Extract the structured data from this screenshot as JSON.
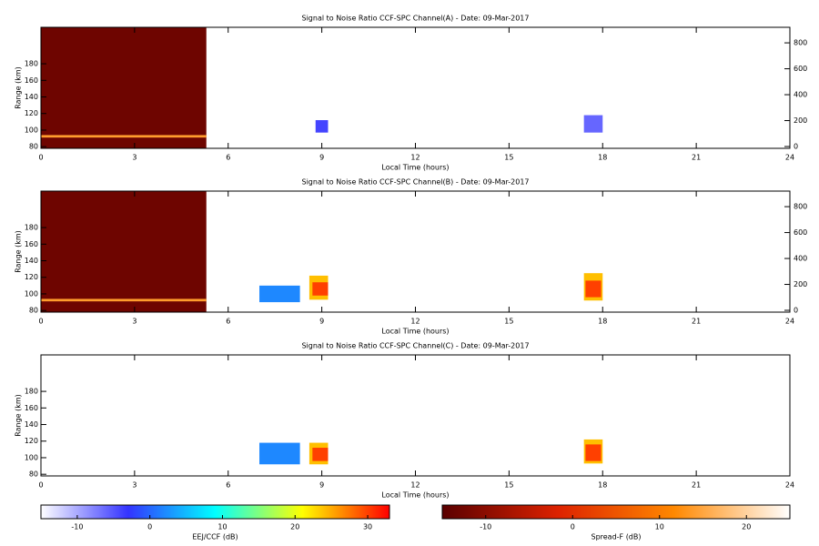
{
  "chart_data": [
    {
      "type": "heatmap",
      "title": "Signal to Noise Ratio CCF-SPC Channel(A) - Date: 09-Mar-2017",
      "xlabel": "Local Time (hours)",
      "ylabel": "Range (km)",
      "xlim": [
        0,
        24
      ],
      "xticks": [
        0,
        3,
        6,
        9,
        12,
        15,
        18,
        21,
        24
      ],
      "ylim": [
        78,
        224
      ],
      "yticks": [
        80,
        100,
        120,
        140,
        160,
        180
      ],
      "y2lim": [
        -14,
        920
      ],
      "y2ticks": [
        0,
        200,
        400,
        600,
        800
      ],
      "series": [
        {
          "cells": [
            {
              "x": [
                8.8,
                9.2
              ],
              "y": [
                97,
                112
              ],
              "value": -4
            },
            {
              "x": [
                17.4,
                18
              ],
              "y": [
                97,
                118
              ],
              "value": -6
            }
          ]
        },
        {
          "cells": [
            {
              "x": [
                0,
                5.3
              ],
              "y": [
                78,
                224
              ],
              "value": -13
            },
            {
              "x": [
                0,
                5.3
              ],
              "y": [
                91,
                94
              ],
              "value": 14
            }
          ]
        }
      ]
    },
    {
      "type": "heatmap",
      "title": "Signal to Noise Ratio CCF-SPC Channel(B) - Date: 09-Mar-2017",
      "xlabel": "Local Time (hours)",
      "ylabel": "Range (km)",
      "xlim": [
        0,
        24
      ],
      "xticks": [
        0,
        3,
        6,
        9,
        12,
        15,
        18,
        21,
        24
      ],
      "ylim": [
        78,
        224
      ],
      "yticks": [
        80,
        100,
        120,
        140,
        160,
        180
      ],
      "y2lim": [
        -14,
        920
      ],
      "y2ticks": [
        0,
        200,
        400,
        600,
        800
      ],
      "series": [
        {
          "cells": [
            {
              "x": [
                7,
                8.3
              ],
              "y": [
                90,
                110
              ],
              "value": 2
            },
            {
              "x": [
                8.6,
                9.2
              ],
              "y": [
                93,
                122
              ],
              "value": 24
            },
            {
              "x": [
                8.7,
                9.2
              ],
              "y": [
                98,
                114
              ],
              "value": 30
            },
            {
              "x": [
                17.4,
                18
              ],
              "y": [
                92,
                125
              ],
              "value": 24
            },
            {
              "x": [
                17.45,
                17.95
              ],
              "y": [
                96,
                116
              ],
              "value": 30
            }
          ]
        },
        {
          "cells": [
            {
              "x": [
                0,
                5.3
              ],
              "y": [
                78,
                224
              ],
              "value": -13
            },
            {
              "x": [
                0,
                5.3
              ],
              "y": [
                91,
                94
              ],
              "value": 14
            }
          ]
        }
      ]
    },
    {
      "type": "heatmap",
      "title": "Signal to Noise Ratio CCF-SPC Channel(C) - Date: 09-Mar-2017",
      "xlabel": "Local Time (hours)",
      "ylabel": "Range (km)",
      "xlim": [
        0,
        24
      ],
      "xticks": [
        0,
        3,
        6,
        9,
        12,
        15,
        18,
        21,
        24
      ],
      "ylim": [
        78,
        224
      ],
      "yticks": [
        80,
        100,
        120,
        140,
        160,
        180
      ],
      "series": [
        {
          "cells": [
            {
              "x": [
                7,
                8.3
              ],
              "y": [
                92,
                118
              ],
              "value": 2
            },
            {
              "x": [
                8.6,
                9.2
              ],
              "y": [
                92,
                118
              ],
              "value": 24
            },
            {
              "x": [
                8.7,
                9.2
              ],
              "y": [
                96,
                112
              ],
              "value": 30
            },
            {
              "x": [
                17.4,
                18
              ],
              "y": [
                93,
                122
              ],
              "value": 24
            },
            {
              "x": [
                17.45,
                17.95
              ],
              "y": [
                96,
                116
              ],
              "value": 30
            }
          ]
        }
      ]
    },
    {
      "type": "colorbar",
      "label": "EEJ/CCF (dB)",
      "xlim": [
        -15,
        33
      ],
      "xticks": [
        -10,
        0,
        10,
        20,
        30
      ],
      "colors": [
        "#ffffff",
        "#3333ff",
        "#00ffff",
        "#ffff00",
        "#ff0000"
      ]
    },
    {
      "type": "colorbar",
      "label": "Spread-F (dB)",
      "xlim": [
        -15,
        25
      ],
      "xticks": [
        -10,
        0,
        10,
        20
      ],
      "colors": [
        "#5a0000",
        "#dd2200",
        "#ff8800",
        "#ffffff"
      ]
    }
  ]
}
